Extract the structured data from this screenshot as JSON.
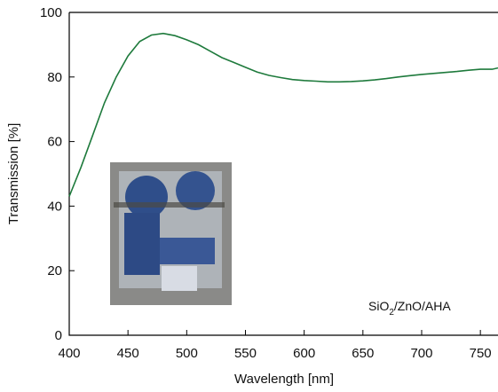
{
  "chart_data": {
    "type": "line",
    "x_label": "Wavelength [nm]",
    "y_label": "Transmission [%]",
    "annotation": [
      "SiO",
      "2",
      "/ZnO/AHA"
    ],
    "x": [
      400,
      410,
      420,
      430,
      440,
      450,
      460,
      470,
      480,
      490,
      500,
      510,
      520,
      530,
      540,
      550,
      560,
      570,
      580,
      590,
      600,
      610,
      620,
      630,
      640,
      650,
      660,
      670,
      680,
      690,
      700,
      710,
      720,
      730,
      740,
      750,
      760,
      765
    ],
    "series": [
      {
        "color": "#1e7a3c",
        "values": [
          43,
          52,
          62,
          72,
          80,
          86.5,
          91,
          93,
          93.5,
          92.8,
          91.5,
          90,
          88,
          86,
          84.5,
          83,
          81.5,
          80.5,
          79.8,
          79.2,
          78.9,
          78.7,
          78.5,
          78.5,
          78.6,
          78.8,
          79.1,
          79.5,
          80,
          80.4,
          80.8,
          81.1,
          81.4,
          81.7,
          82.1,
          82.4,
          82.4,
          82.8
        ]
      }
    ],
    "xlim": [
      400,
      765
    ],
    "ylim": [
      0,
      100
    ],
    "xticks": [
      400,
      450,
      500,
      550,
      600,
      650,
      700,
      750
    ],
    "yticks": [
      0,
      20,
      40,
      60,
      80,
      100
    ]
  }
}
